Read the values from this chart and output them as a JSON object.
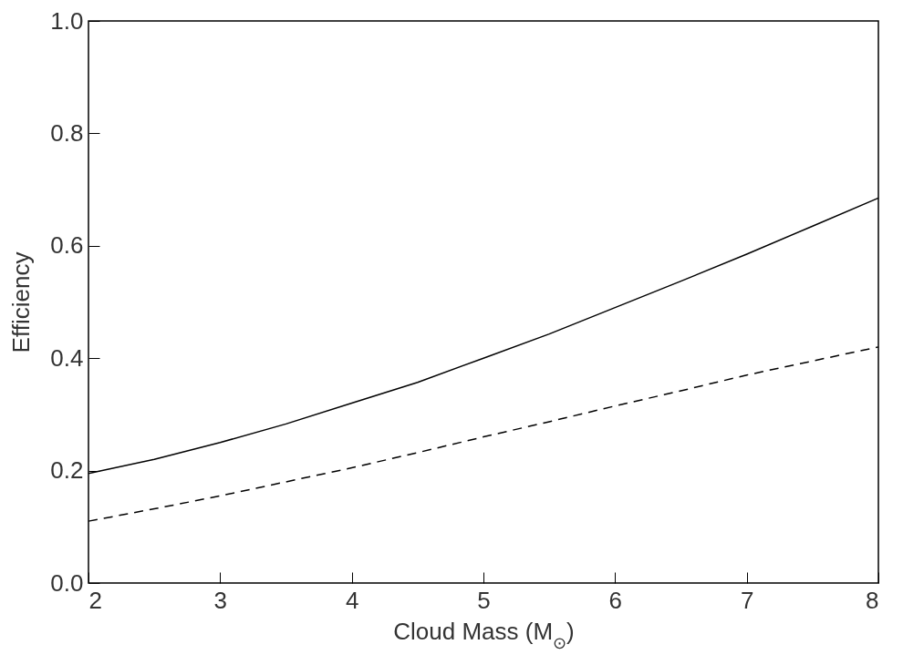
{
  "chart_data": {
    "type": "line",
    "xlabel": "Cloud Mass (M$_{⊙}$)",
    "ylabel": "Efficiency",
    "xlim": [
      2,
      8
    ],
    "ylim": [
      0,
      1
    ],
    "xticks": [
      2,
      3,
      4,
      5,
      6,
      7,
      8
    ],
    "yticks": [
      {
        "value": 0,
        "label": "0.0"
      },
      0.2,
      0.4,
      0.6,
      0.8,
      {
        "value": 1,
        "label": "1.0"
      }
    ],
    "grid": false,
    "series": [
      {
        "color": "#000000",
        "line_style": "solid",
        "x": [
          2,
          2.5,
          3,
          3.5,
          4,
          4.5,
          5,
          5.5,
          6,
          6.5,
          7,
          7.5,
          8
        ],
        "values": [
          0.195,
          0.22,
          0.25,
          0.283,
          0.32,
          0.357,
          0.4,
          0.443,
          0.49,
          0.537,
          0.585,
          0.635,
          0.685
        ]
      },
      {
        "color": "#000000",
        "line_style": "dashed",
        "x": [
          2,
          2.5,
          3,
          3.5,
          4,
          4.5,
          5,
          5.5,
          6,
          6.5,
          7,
          7.5,
          8
        ],
        "values": [
          0.11,
          0.132,
          0.155,
          0.18,
          0.205,
          0.232,
          0.26,
          0.287,
          0.315,
          0.342,
          0.37,
          0.395,
          0.42
        ]
      }
    ]
  }
}
